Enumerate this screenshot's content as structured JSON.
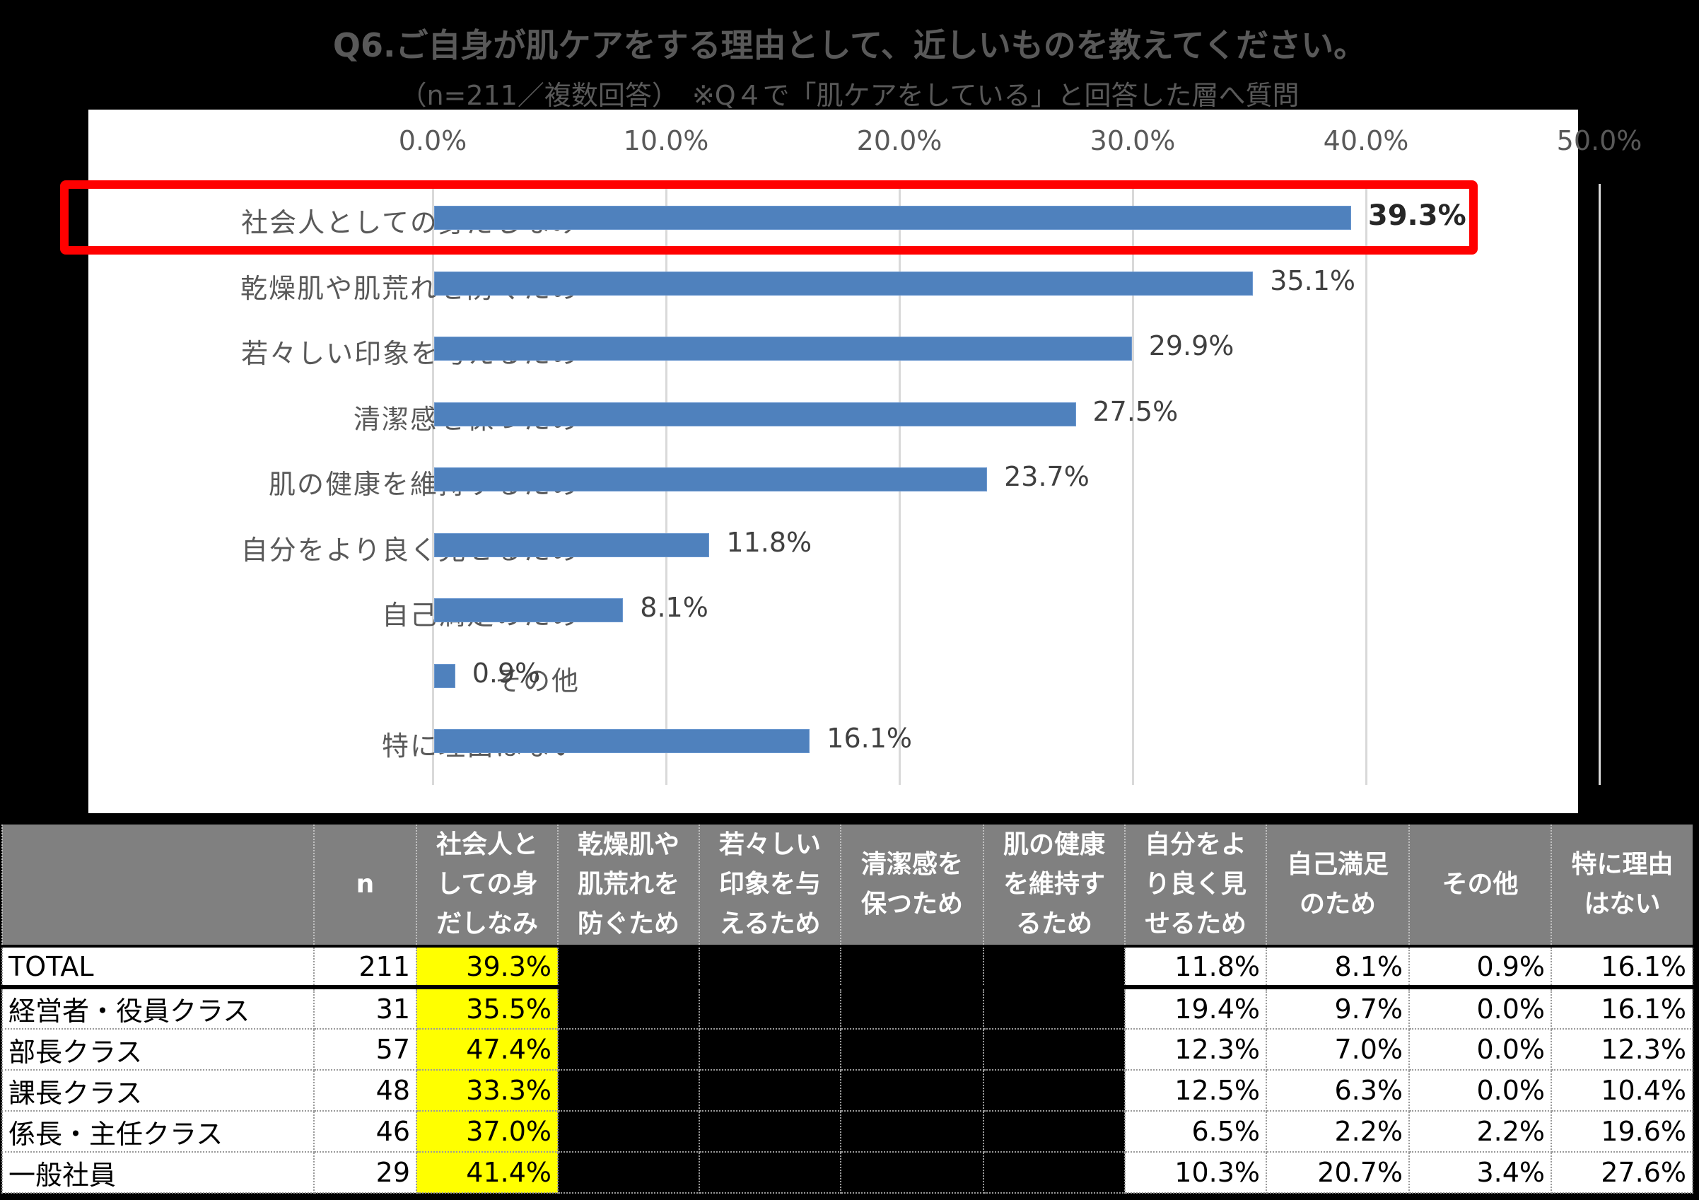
{
  "header": {
    "title": "Q6.ご自身が肌ケアをする理由として、近しいものを教えてください。",
    "subtitle": "（n=211／複数回答）　※Q４で「肌ケアをしている」と回答した層へ質問"
  },
  "chart_data": {
    "type": "bar",
    "orientation": "horizontal",
    "title": "Q6.ご自身が肌ケアをする理由として、近しいものを教えてください。",
    "subtitle": "（n=211／複数回答）　※Q４で「肌ケアをしている」と回答した層へ質問",
    "categories": [
      "社会人としての身だしなみ",
      "乾燥肌や肌荒れを防ぐため",
      "若々しい印象を与えるため",
      "清潔感を保つため",
      "肌の健康を維持するため",
      "自分をより良く見せるため",
      "自己満足のため",
      "その他",
      "特に理由はない"
    ],
    "values": [
      39.3,
      35.1,
      29.9,
      27.5,
      23.7,
      11.8,
      8.1,
      0.9,
      16.1
    ],
    "value_labels": [
      "39.3%",
      "35.1%",
      "29.9%",
      "27.5%",
      "23.7%",
      "11.8%",
      "8.1%",
      "0.9%",
      "16.1%"
    ],
    "x_ticks": [
      "0.0%",
      "10.0%",
      "20.0%",
      "30.0%",
      "40.0%",
      "50.0%"
    ],
    "xlim": [
      0,
      50
    ],
    "xlabel": "",
    "ylabel": "",
    "grid": true,
    "bar_color": "#4f81bd",
    "highlighted_category": "社会人としての身だしなみ",
    "highlight_color": "#ff0000"
  },
  "table": {
    "headers": [
      "",
      "n",
      "社会人と\nしての身\nだしなみ",
      "乾燥肌や\n肌荒れを\n防ぐため",
      "若々しい\n印象を与\nえるため",
      "清潔感を\n保つため",
      "肌の健康\nを維持す\nるため",
      "自分をよ\nり良く見\nせるため",
      "自己満足\nのため",
      "その他",
      "特に理由\nはない"
    ],
    "rows": [
      {
        "label": "TOTAL",
        "n": "211",
        "c1": "39.3%",
        "c6": "11.8%",
        "c7": "8.1%",
        "c8": "0.9%",
        "c9": "16.1%"
      },
      {
        "label": "経営者・役員クラス",
        "n": "31",
        "c1": "35.5%",
        "c6": "19.4%",
        "c7": "9.7%",
        "c8": "0.0%",
        "c9": "16.1%"
      },
      {
        "label": "部長クラス",
        "n": "57",
        "c1": "47.4%",
        "c6": "12.3%",
        "c7": "7.0%",
        "c8": "0.0%",
        "c9": "12.3%"
      },
      {
        "label": "課長クラス",
        "n": "48",
        "c1": "33.3%",
        "c6": "12.5%",
        "c7": "6.3%",
        "c8": "0.0%",
        "c9": "10.4%"
      },
      {
        "label": "係長・主任クラス",
        "n": "46",
        "c1": "37.0%",
        "c6": "6.5%",
        "c7": "2.2%",
        "c8": "2.2%",
        "c9": "19.6%"
      },
      {
        "label": "一般社員",
        "n": "29",
        "c1": "41.4%",
        "c6": "10.3%",
        "c7": "20.7%",
        "c8": "3.4%",
        "c9": "27.6%"
      }
    ],
    "highlight_color": "#ffff00",
    "header_bg": "#808080"
  }
}
